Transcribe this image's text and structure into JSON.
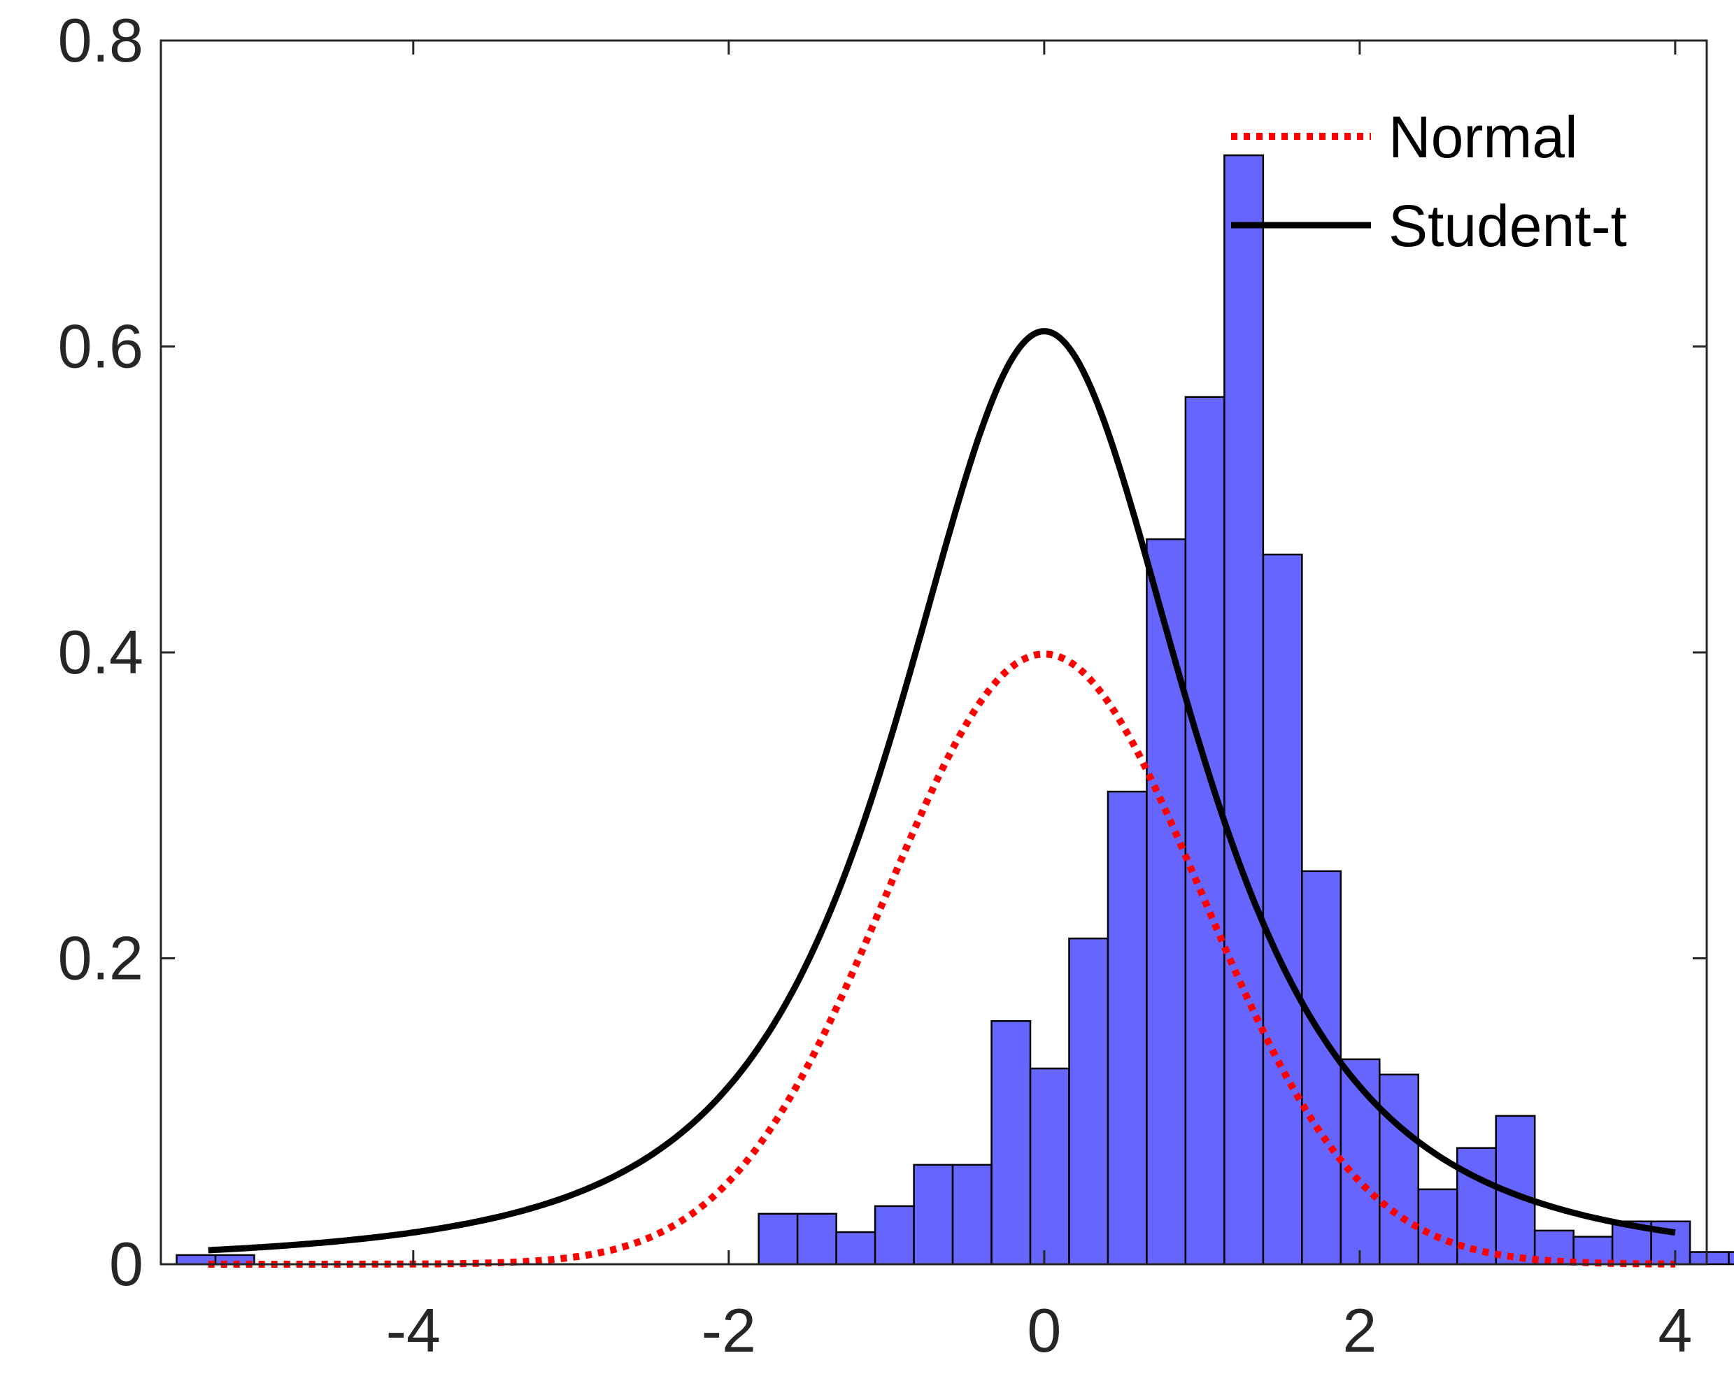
{
  "chart_data": {
    "type": "histogram",
    "bins": {
      "width": 0.246,
      "edges_start": -5.5,
      "densities": [
        0.006,
        0.006,
        0,
        0,
        0,
        0,
        0,
        0,
        0,
        0,
        0,
        0,
        0,
        0,
        0,
        0.033,
        0.033,
        0.021,
        0.038,
        0.065,
        0.065,
        0.159,
        0.128,
        0.213,
        0.309,
        0.474,
        0.567,
        0.725,
        0.464,
        0.257,
        0.134,
        0.124,
        0.049,
        0.076,
        0.097,
        0.022,
        0.018,
        0.028,
        0.028,
        0.008,
        0.008,
        0.011,
        0.011,
        0.006
      ]
    },
    "series": [
      {
        "name": "Normal",
        "kind": "curve",
        "distribution": "normal",
        "mu": 0,
        "sigma": 1,
        "color": "#ff0000",
        "style": "dotted"
      },
      {
        "name": "Student-t",
        "kind": "curve",
        "distribution": "student-t",
        "peak": 0.61,
        "df": 2.2,
        "color": "#000000",
        "style": "solid"
      }
    ],
    "xlim": [
      -5.6,
      4.2
    ],
    "ylim": [
      0,
      0.8
    ],
    "xticks": [
      "-4",
      "-2",
      "0",
      "2",
      "4"
    ],
    "xtick_values": [
      -4,
      -2,
      0,
      2,
      4
    ],
    "yticks": [
      "0",
      "0.2",
      "0.4",
      "0.6",
      "0.8"
    ],
    "ytick_values": [
      0,
      0.2,
      0.4,
      0.6,
      0.8
    ],
    "legend": {
      "position": "top-right",
      "entries": [
        "Normal",
        "Student-t"
      ]
    },
    "colors": {
      "bars": "#6666ff",
      "bar_edge": "#000000",
      "normal": "#ff0000",
      "student_t": "#000000"
    },
    "grid": false
  }
}
